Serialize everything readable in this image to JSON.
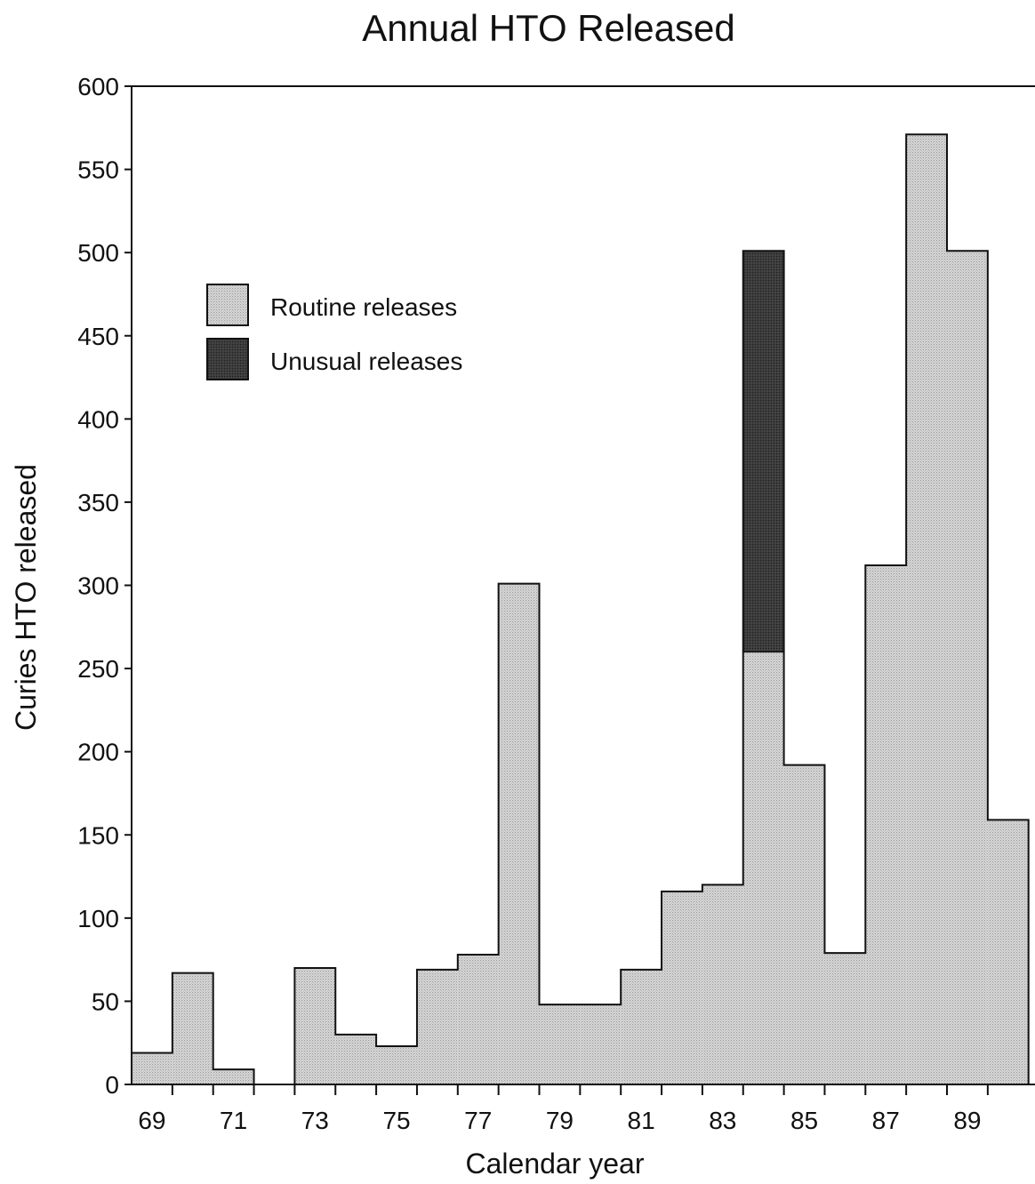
{
  "chart_data": {
    "type": "bar",
    "stacked": true,
    "title": "Annual HTO Released",
    "xlabel": "Calendar year",
    "ylabel": "Curies HTO released",
    "ylim": [
      0,
      600
    ],
    "yticks": [
      0,
      50,
      100,
      150,
      200,
      250,
      300,
      350,
      400,
      450,
      500,
      550,
      600
    ],
    "categories": [
      "69",
      "70",
      "71",
      "72",
      "73",
      "74",
      "75",
      "76",
      "77",
      "78",
      "79",
      "80",
      "81",
      "82",
      "83",
      "84",
      "85",
      "86",
      "87",
      "88",
      "89",
      "90"
    ],
    "xtick_labels": [
      "69",
      "71",
      "73",
      "75",
      "77",
      "79",
      "81",
      "83",
      "85",
      "87",
      "89"
    ],
    "grid": false,
    "legend_position": "top-left",
    "series": [
      {
        "name": "Routine releases",
        "color": "#c8c8c8",
        "values": [
          19,
          67,
          9,
          0,
          70,
          30,
          23,
          69,
          78,
          301,
          48,
          48,
          69,
          116,
          120,
          260,
          192,
          79,
          312,
          571,
          501,
          159
        ]
      },
      {
        "name": "Unusual releases",
        "color": "#3a3a3a",
        "values": [
          0,
          0,
          0,
          0,
          0,
          0,
          0,
          0,
          0,
          0,
          0,
          0,
          0,
          0,
          0,
          241,
          0,
          0,
          0,
          0,
          0,
          0
        ]
      }
    ]
  }
}
